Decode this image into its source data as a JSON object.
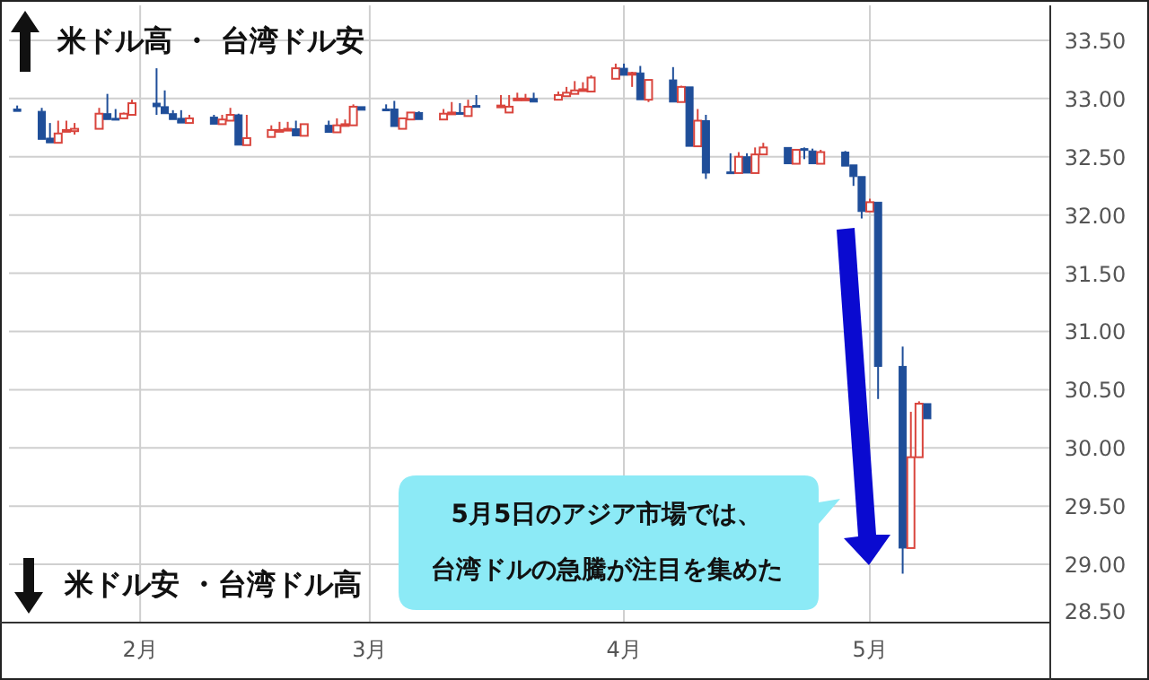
{
  "chart_data": {
    "type": "candlestick",
    "x": [
      "--01-17",
      "--01-20",
      "--01-21",
      "--01-22",
      "--01-23",
      "--01-24",
      "--01-27",
      "--01-28",
      "--01-29",
      "--01-30",
      "--01-31",
      "--02-03",
      "--02-04",
      "--02-05",
      "--02-06",
      "--02-07",
      "--02-10",
      "--02-11",
      "--02-12",
      "--02-13",
      "--02-14",
      "--02-17",
      "--02-18",
      "--02-19",
      "--02-20",
      "--02-21",
      "--02-24",
      "--02-25",
      "--02-26",
      "--02-27",
      "--02-28",
      "--03-03",
      "--03-04",
      "--03-05",
      "--03-06",
      "--03-07",
      "--03-10",
      "--03-11",
      "--03-12",
      "--03-13",
      "--03-14",
      "--03-17",
      "--03-18",
      "--03-19",
      "--03-20",
      "--03-21",
      "--03-24",
      "--03-25",
      "--03-26",
      "--03-27",
      "--03-28",
      "--03-31",
      "--04-01",
      "--04-02",
      "--04-03",
      "--04-04",
      "--04-07",
      "--04-08",
      "--04-09",
      "--04-10",
      "--04-11",
      "--04-14",
      "--04-15",
      "--04-16",
      "--04-17",
      "--04-18",
      "--04-21",
      "--04-22",
      "--04-23",
      "--04-24",
      "--04-25",
      "--04-28",
      "--04-29",
      "--04-30",
      "--05-01",
      "--05-02",
      "--05-05",
      "--05-06",
      "--05-07",
      "--05-08"
    ],
    "ohlc": [
      [
        32.91,
        32.94,
        32.89,
        32.89
      ],
      [
        32.89,
        32.92,
        32.65,
        32.65
      ],
      [
        32.66,
        32.79,
        32.62,
        32.62
      ],
      [
        32.62,
        32.81,
        32.62,
        32.7
      ],
      [
        32.72,
        32.81,
        32.72,
        32.73
      ],
      [
        32.72,
        32.79,
        32.69,
        32.74
      ],
      [
        32.74,
        32.92,
        32.74,
        32.87
      ],
      [
        32.87,
        33.04,
        32.82,
        32.82
      ],
      [
        32.83,
        32.91,
        32.82,
        32.82
      ],
      [
        32.83,
        32.88,
        32.83,
        32.87
      ],
      [
        32.86,
        32.99,
        32.86,
        32.96
      ],
      [
        32.96,
        33.26,
        32.86,
        32.93
      ],
      [
        32.93,
        33.07,
        32.87,
        32.87
      ],
      [
        32.87,
        32.9,
        32.82,
        32.82
      ],
      [
        32.83,
        32.9,
        32.79,
        32.79
      ],
      [
        32.79,
        32.86,
        32.79,
        32.83
      ],
      [
        32.84,
        32.86,
        32.78,
        32.78
      ],
      [
        32.78,
        32.86,
        32.78,
        32.82
      ],
      [
        32.81,
        32.92,
        32.81,
        32.86
      ],
      [
        32.86,
        32.87,
        32.6,
        32.6
      ],
      [
        32.6,
        32.86,
        32.6,
        32.66
      ],
      [
        32.67,
        32.77,
        32.67,
        32.73
      ],
      [
        32.72,
        32.8,
        32.72,
        32.73
      ],
      [
        32.73,
        32.8,
        32.73,
        32.74
      ],
      [
        32.74,
        32.81,
        32.68,
        32.68
      ],
      [
        32.68,
        32.78,
        32.68,
        32.78
      ],
      [
        32.77,
        32.81,
        32.71,
        32.71
      ],
      [
        32.71,
        32.83,
        32.71,
        32.77
      ],
      [
        32.77,
        32.82,
        32.77,
        32.78
      ],
      [
        32.77,
        32.95,
        32.77,
        32.93
      ],
      [
        32.93,
        32.93,
        32.9,
        32.9
      ],
      [
        32.91,
        32.95,
        32.9,
        32.9
      ],
      [
        32.91,
        32.98,
        32.76,
        32.76
      ],
      [
        32.74,
        32.83,
        32.74,
        32.83
      ],
      [
        32.82,
        32.88,
        32.82,
        32.88
      ],
      [
        32.88,
        32.89,
        32.82,
        32.82
      ],
      [
        32.82,
        32.91,
        32.82,
        32.87
      ],
      [
        32.87,
        32.97,
        32.87,
        32.88
      ],
      [
        32.88,
        32.96,
        32.87,
        32.87
      ],
      [
        32.85,
        32.99,
        32.85,
        32.93
      ],
      [
        32.94,
        33.03,
        32.93,
        32.93
      ],
      [
        32.93,
        33.03,
        32.93,
        32.94
      ],
      [
        32.88,
        33.03,
        32.88,
        32.93
      ],
      [
        32.99,
        33.05,
        32.99,
        33.0
      ],
      [
        32.99,
        33.04,
        32.99,
        33.0
      ],
      [
        33.0,
        33.05,
        32.97,
        32.97
      ],
      [
        32.99,
        33.06,
        32.99,
        33.03
      ],
      [
        33.02,
        33.1,
        33.02,
        33.05
      ],
      [
        33.04,
        33.15,
        33.04,
        33.07
      ],
      [
        33.07,
        33.14,
        33.07,
        33.08
      ],
      [
        33.06,
        33.2,
        33.06,
        33.18
      ],
      [
        33.17,
        33.3,
        33.17,
        33.26
      ],
      [
        33.26,
        33.3,
        33.2,
        33.2
      ],
      [
        33.21,
        33.23,
        33.1,
        33.22
      ],
      [
        33.22,
        33.28,
        32.99,
        32.99
      ],
      [
        32.99,
        33.16,
        32.97,
        33.16
      ],
      [
        33.16,
        33.27,
        32.97,
        32.97
      ],
      [
        32.97,
        33.11,
        32.97,
        33.1
      ],
      [
        33.1,
        33.1,
        32.59,
        32.59
      ],
      [
        32.59,
        32.91,
        32.59,
        32.81
      ],
      [
        32.81,
        32.86,
        32.31,
        32.36
      ],
      [
        32.37,
        32.53,
        32.36,
        32.36
      ],
      [
        32.36,
        32.54,
        32.36,
        32.5
      ],
      [
        32.5,
        32.53,
        32.36,
        32.36
      ],
      [
        32.36,
        32.58,
        32.36,
        32.52
      ],
      [
        32.52,
        32.62,
        32.52,
        32.58
      ],
      [
        32.58,
        32.58,
        32.44,
        32.44
      ],
      [
        32.44,
        32.56,
        32.44,
        32.56
      ],
      [
        32.57,
        32.58,
        32.48,
        32.56
      ],
      [
        32.55,
        32.57,
        32.44,
        32.44
      ],
      [
        32.44,
        32.56,
        32.44,
        32.54
      ],
      [
        32.54,
        32.55,
        32.42,
        32.42
      ],
      [
        32.43,
        32.43,
        32.25,
        32.33
      ],
      [
        32.33,
        32.33,
        31.97,
        32.03
      ],
      [
        32.03,
        32.14,
        32.03,
        32.11
      ],
      [
        32.11,
        32.11,
        30.42,
        30.7
      ],
      [
        30.7,
        30.87,
        28.92,
        29.14
      ],
      [
        29.14,
        30.31,
        29.14,
        29.92
      ],
      [
        29.92,
        30.4,
        29.92,
        30.38
      ],
      [
        30.38,
        30.38,
        30.25,
        30.25
      ]
    ],
    "colors": [
      "#1f4e99",
      "#1f4e99",
      "#1f4e99",
      "#d9453d",
      "#d9453d",
      "#d9453d",
      "#d9453d",
      "#1f4e99",
      "#1f4e99",
      "#d9453d",
      "#d9453d",
      "#1f4e99",
      "#1f4e99",
      "#1f4e99",
      "#1f4e99",
      "#d9453d",
      "#1f4e99",
      "#d9453d",
      "#d9453d",
      "#1f4e99",
      "#d9453d",
      "#d9453d",
      "#d9453d",
      "#d9453d",
      "#1f4e99",
      "#d9453d",
      "#1f4e99",
      "#d9453d",
      "#d9453d",
      "#d9453d",
      "#1f4e99",
      "#1f4e99",
      "#1f4e99",
      "#d9453d",
      "#d9453d",
      "#1f4e99",
      "#d9453d",
      "#d9453d",
      "#1f4e99",
      "#d9453d",
      "#1f4e99",
      "#d9453d",
      "#d9453d",
      "#d9453d",
      "#d9453d",
      "#1f4e99",
      "#d9453d",
      "#d9453d",
      "#d9453d",
      "#d9453d",
      "#d9453d",
      "#d9453d",
      "#1f4e99",
      "#d9453d",
      "#1f4e99",
      "#d9453d",
      "#1f4e99",
      "#d9453d",
      "#1f4e99",
      "#d9453d",
      "#1f4e99",
      "#1f4e99",
      "#d9453d",
      "#1f4e99",
      "#d9453d",
      "#d9453d",
      "#1f4e99",
      "#d9453d",
      "#1f4e99",
      "#1f4e99",
      "#d9453d",
      "#1f4e99",
      "#1f4e99",
      "#1f4e99",
      "#d9453d",
      "#1f4e99",
      "#1f4e99",
      "#d9453d",
      "#d9453d",
      "#1f4e99"
    ],
    "xlim": [
      "--01-16",
      "--05-23"
    ],
    "xticks": [
      {
        "value": "--02-01",
        "label": "2月"
      },
      {
        "value": "--03-01",
        "label": "3月"
      },
      {
        "value": "--04-01",
        "label": "4月"
      },
      {
        "value": "--05-01",
        "label": "5月"
      }
    ],
    "ylim": [
      28.5,
      33.8
    ],
    "yticks": [
      {
        "value": 28.5,
        "label": "28.50"
      },
      {
        "value": 29,
        "label": "29.00"
      },
      {
        "value": 29.5,
        "label": "29.50"
      },
      {
        "value": 30,
        "label": "30.00"
      },
      {
        "value": 30.5,
        "label": "30.50"
      },
      {
        "value": 31,
        "label": "31.00"
      },
      {
        "value": 31.5,
        "label": "31.50"
      },
      {
        "value": 32,
        "label": "32.00"
      },
      {
        "value": 32.5,
        "label": "32.50"
      },
      {
        "value": 33,
        "label": "33.00"
      },
      {
        "value": 33.5,
        "label": "33.50"
      }
    ],
    "grid": true,
    "annotations": [
      "米ドル高 ・ 台湾ドル安",
      "米ドル安 ・台湾ドル高",
      "5月5日のアジア市場では、",
      "台湾ドルの急騰が注目を集めた"
    ]
  }
}
